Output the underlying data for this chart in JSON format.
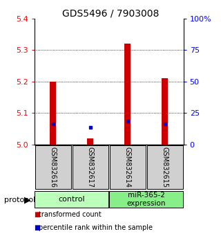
{
  "title": "GDS5496 / 7903008",
  "samples": [
    "GSM832616",
    "GSM832617",
    "GSM832614",
    "GSM832615"
  ],
  "red_values": [
    5.2,
    5.02,
    5.32,
    5.21
  ],
  "blue_values": [
    5.065,
    5.055,
    5.075,
    5.065
  ],
  "ymin": 5.0,
  "ymax": 5.4,
  "yticks_left": [
    5.0,
    5.1,
    5.2,
    5.3,
    5.4
  ],
  "yticks_right": [
    0,
    25,
    50,
    75,
    100
  ],
  "bar_color": "#cc0000",
  "blue_color": "#0000cc",
  "title_fontsize": 10,
  "protocol_label": "protocol",
  "legend_red": "transformed count",
  "legend_blue": "percentile rank within the sample",
  "control_color": "#bbffbb",
  "mir_color": "#88ee88",
  "sample_box_color": "#d0d0d0"
}
